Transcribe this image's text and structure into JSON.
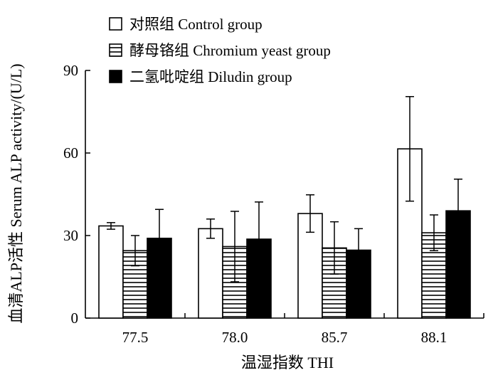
{
  "chart_data": {
    "type": "bar",
    "title": "",
    "xlabel": "温湿指数  THI",
    "ylabel": "血清ALP活性 Serum ALP activity/(U/L)",
    "ylim": [
      0,
      90
    ],
    "yticks": [
      0,
      30,
      60,
      90
    ],
    "categories": [
      "77.5",
      "78.0",
      "85.7",
      "88.1"
    ],
    "series": [
      {
        "name": "对照组  Control group",
        "pattern": "empty",
        "color": "#000000",
        "values": [
          33.5,
          32.5,
          38,
          61.5
        ],
        "error": [
          1.2,
          3.5,
          6.8,
          19
        ]
      },
      {
        "name": "酵母铬组  Chromium yeast group",
        "pattern": "horizontal-lines",
        "color": "#000000",
        "values": [
          24.5,
          26,
          25.5,
          31
        ],
        "error": [
          5.5,
          12.8,
          9.5,
          6.5
        ]
      },
      {
        "name": "二氢吡啶组  Diludin group",
        "pattern": "solid",
        "color": "#000000",
        "values": [
          29,
          28.7,
          24.7,
          39
        ],
        "error": [
          10.5,
          13.5,
          7.8,
          11.5
        ]
      }
    ],
    "legend_position": "top-left",
    "grid": false
  }
}
